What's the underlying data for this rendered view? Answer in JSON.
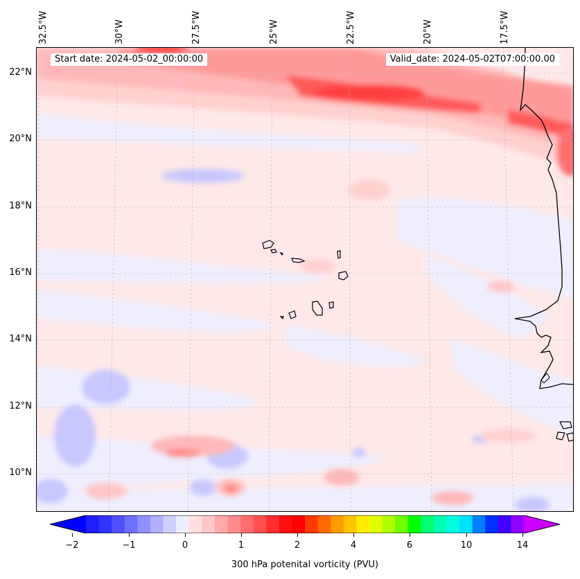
{
  "map": {
    "longitude_labels": [
      "32.5°W",
      "30°W",
      "27.5°W",
      "25°W",
      "22.5°W",
      "20°W",
      "17.5°W"
    ],
    "latitude_labels": [
      "22°N",
      "20°N",
      "18°N",
      "16°N",
      "14°N",
      "12°N",
      "10°N"
    ],
    "start_date": "Start date: 2024-05-02_00:00:00",
    "valid_date": "Valid_date: 2024-05-02T07:00:00.00",
    "field": "300 hPa potential vorticity",
    "palette": {
      "strong_red": "#ff3030",
      "medium_red": "#ff7070",
      "light_red": "#ffb8b8",
      "faint_red": "#fee8e8",
      "faint_blue": "#eeeeff",
      "light_blue": "#c8c8ff",
      "medium_blue": "#9a9aff"
    }
  },
  "colorbar": {
    "label": "300 hPa potenital vorticity (PVU)",
    "tick_labels": [
      "−2",
      "−1",
      "0",
      "1",
      "2",
      "4",
      "6",
      "10",
      "14"
    ],
    "colors": [
      "#1e1eff",
      "#3232ff",
      "#5050ff",
      "#7070ff",
      "#9090ff",
      "#b0b0ff",
      "#d0d0ff",
      "#eeeeff",
      "#ffe0e0",
      "#ffc8c8",
      "#ffaaaa",
      "#ff8c8c",
      "#ff6e6e",
      "#ff5050",
      "#ff2e2e",
      "#ff1010",
      "#ff0000",
      "#ff3a00",
      "#ff6a00",
      "#ff9a00",
      "#ffc400",
      "#ffee00",
      "#e0ff00",
      "#b0ff00",
      "#70ff00",
      "#00ff00",
      "#00ff70",
      "#00ffb0",
      "#00ffe0",
      "#00e0ff",
      "#0080ff",
      "#0030ff",
      "#4000ff",
      "#9000ff"
    ],
    "extend_min_color": "#0000ff",
    "extend_max_color": "#cc00ff"
  }
}
